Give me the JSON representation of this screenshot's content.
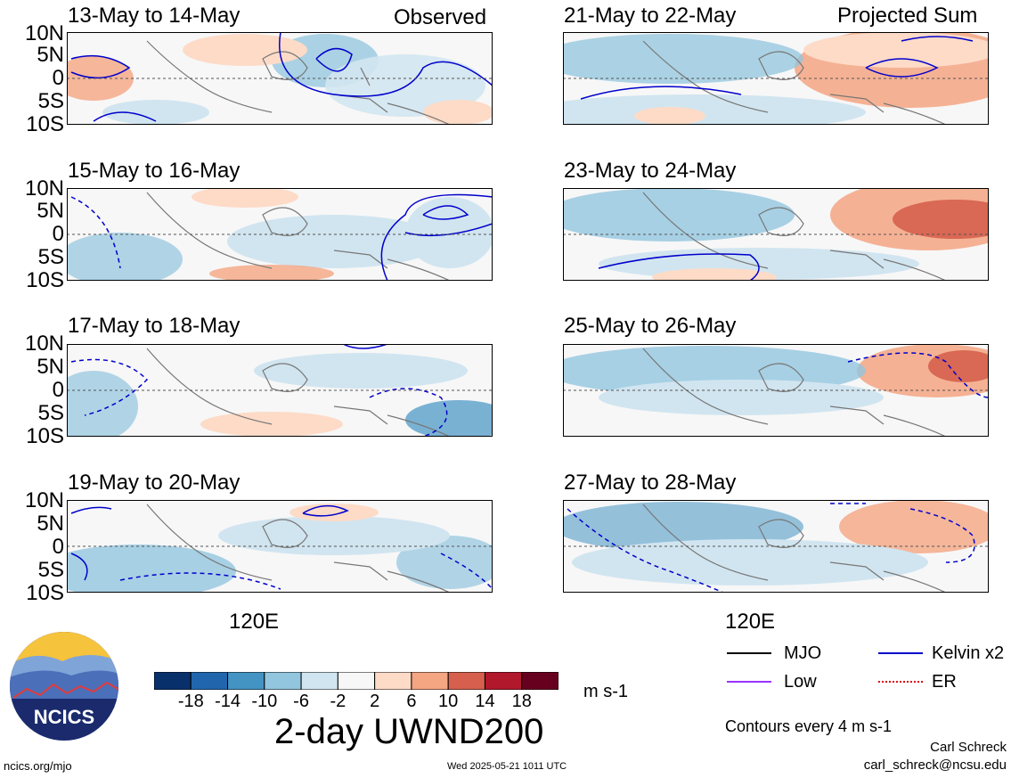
{
  "panels": [
    {
      "title": "13-May to 14-May",
      "corner": "Observed"
    },
    {
      "title": "15-May to 16-May",
      "corner": ""
    },
    {
      "title": "17-May to 18-May",
      "corner": ""
    },
    {
      "title": "19-May to 20-May",
      "corner": ""
    },
    {
      "title": "21-May to 22-May",
      "corner": "Projected Sum"
    },
    {
      "title": "23-May to 24-May",
      "corner": ""
    },
    {
      "title": "25-May to 26-May",
      "corner": ""
    },
    {
      "title": "27-May to 28-May",
      "corner": ""
    }
  ],
  "lat_labels": [
    "10N",
    "5N",
    "0",
    "5S",
    "10S"
  ],
  "lon_label": "120E",
  "colorbar": {
    "ticks": [
      "-18",
      "-14",
      "-10",
      "-6",
      "-2",
      "2",
      "6",
      "10",
      "14",
      "18"
    ],
    "colors": [
      "#08306b",
      "#2166ac",
      "#4393c3",
      "#92c5de",
      "#d1e5f0",
      "#f7f7f7",
      "#fddbc7",
      "#f4a582",
      "#d6604d",
      "#b2182b",
      "#67001f"
    ],
    "units": "m s-1"
  },
  "title": "2-day UWND200",
  "legend": [
    {
      "label": "MJO",
      "color": "#000000"
    },
    {
      "label": "Kelvin x2",
      "color": "#0000cc"
    },
    {
      "label": "Low",
      "color": "#9933ff"
    },
    {
      "label": "ER",
      "color": "#dd0000"
    }
  ],
  "contour_note": "Contours every 4 m s-1",
  "logo_text": "NCICS",
  "site": "ncics.org/mjo",
  "timestamp": "Wed 2025-05-21 1011 UTC",
  "author": "Carl Schreck",
  "email": "carl_schreck@ncsu.edu",
  "chart_data": [
    {
      "type": "heatmap",
      "title": "13-May to 14-May",
      "subtitle": "Observed",
      "variable": "2-day UWND200",
      "units": "m s-1",
      "yticks": [
        "10N",
        "5N",
        "0",
        "5S",
        "10S"
      ],
      "xtick": "120E"
    },
    {
      "type": "heatmap",
      "title": "15-May to 16-May",
      "units": "m s-1"
    },
    {
      "type": "heatmap",
      "title": "17-May to 18-May",
      "units": "m s-1"
    },
    {
      "type": "heatmap",
      "title": "19-May to 20-May",
      "units": "m s-1"
    },
    {
      "type": "heatmap",
      "title": "21-May to 22-May",
      "subtitle": "Projected Sum",
      "units": "m s-1"
    },
    {
      "type": "heatmap",
      "title": "23-May to 24-May",
      "units": "m s-1"
    },
    {
      "type": "heatmap",
      "title": "25-May to 26-May",
      "units": "m s-1"
    },
    {
      "type": "heatmap",
      "title": "27-May to 28-May",
      "units": "m s-1"
    }
  ]
}
